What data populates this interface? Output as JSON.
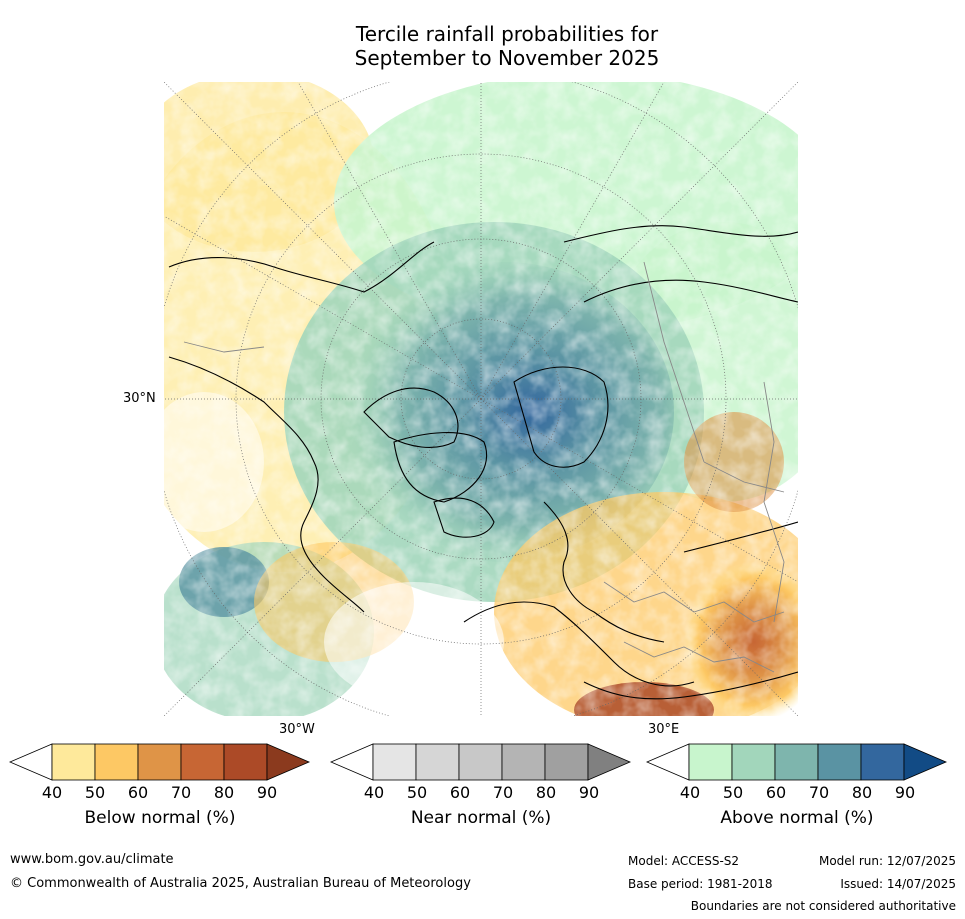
{
  "title": {
    "line1": "Tercile rainfall probabilities for",
    "line2": "September to November 2025"
  },
  "map": {
    "lat_label": "30°N",
    "lon_label_west": "30°W",
    "lon_label_east": "30°E"
  },
  "colorbars": [
    {
      "label": "Below normal (%)",
      "ticks": [
        "40",
        "50",
        "60",
        "70",
        "80",
        "90"
      ],
      "colors": [
        "#ffffff",
        "#fee99b",
        "#fdc864",
        "#df9447",
        "#c76634",
        "#ac4a27",
        "#8b3a1e"
      ]
    },
    {
      "label": "Near normal (%)",
      "ticks": [
        "40",
        "50",
        "60",
        "70",
        "80",
        "90"
      ],
      "colors": [
        "#ffffff",
        "#e5e5e5",
        "#d6d6d6",
        "#c8c8c8",
        "#b4b4b4",
        "#a0a0a0",
        "#808080"
      ]
    },
    {
      "label": "Above normal (%)",
      "ticks": [
        "40",
        "50",
        "60",
        "70",
        "80",
        "90"
      ],
      "colors": [
        "#ffffff",
        "#c8f5cd",
        "#a2d6bb",
        "#7eb5ad",
        "#5a93a3",
        "#33679e",
        "#124b85"
      ]
    }
  ],
  "footer": {
    "url": "www.bom.gov.au/climate",
    "copyright": "© Commonwealth of Australia 2025, Australian Bureau of Meteorology",
    "model": "Model: ACCESS-S2",
    "base_period": "Base period: 1981-2018",
    "model_run": "Model run: 12/07/2025",
    "issued": "Issued: 14/07/2025",
    "disclaimer": "Boundaries are not considered authoritative"
  }
}
